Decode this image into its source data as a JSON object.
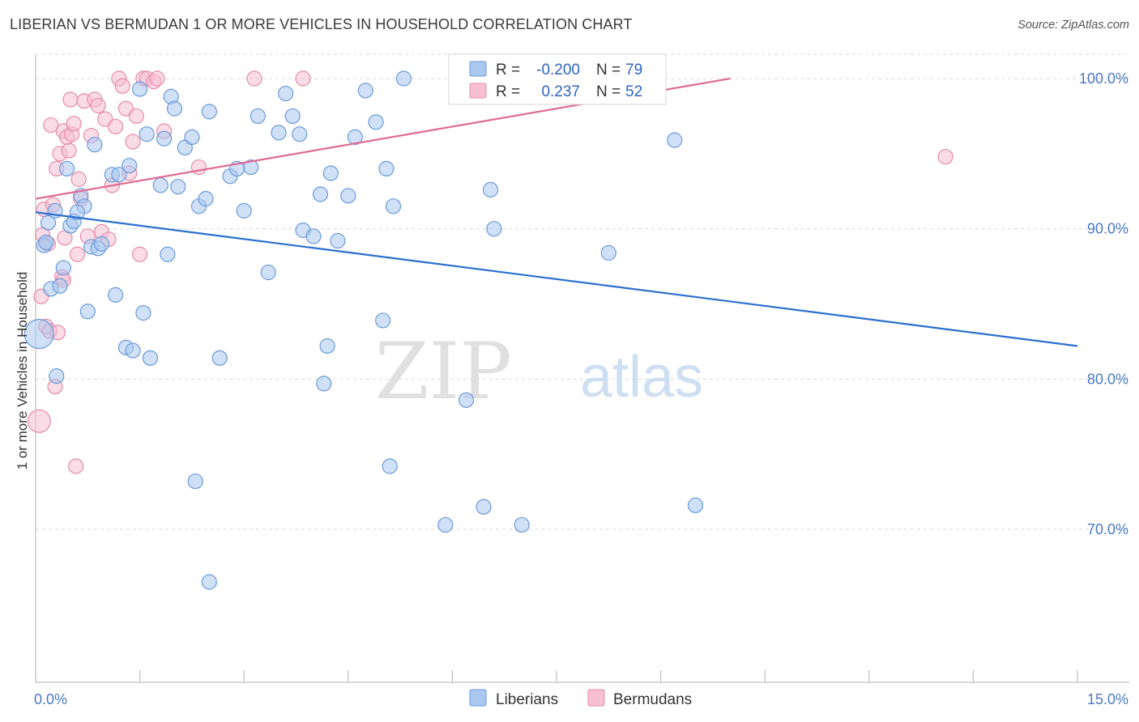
{
  "title": "LIBERIAN VS BERMUDAN 1 OR MORE VEHICLES IN HOUSEHOLD CORRELATION CHART",
  "source": "Source: ZipAtlas.com",
  "watermark": {
    "zip": "ZIP",
    "atlas": "atlas"
  },
  "colors": {
    "blue_fill": "#aac8f0",
    "blue_stroke": "#6a9ad8",
    "blue_line": "#2a6fd0",
    "pink_fill": "#f6c0d2",
    "pink_stroke": "#e68aab",
    "pink_line": "#e06a94",
    "grid": "#d8d8d8",
    "tick_label": "#4a78c4"
  },
  "legend": {
    "rows": [
      {
        "r_label": "R =",
        "r_value": "-0.200",
        "n_label": "N =",
        "n_value": "79"
      },
      {
        "r_label": "R =",
        "r_value": "0.237",
        "n_label": "N =",
        "n_value": "52"
      }
    ]
  },
  "chart_data": {
    "type": "scatter",
    "title": "LIBERIAN VS BERMUDAN 1 OR MORE VEHICLES IN HOUSEHOLD CORRELATION CHART",
    "xlabel": "",
    "ylabel": "1 or more Vehicles in Household",
    "xlim": [
      0,
      15
    ],
    "ylim": [
      60.5,
      101.5
    ],
    "x_tick_labels": [
      "0.0%",
      "15.0%"
    ],
    "y_ticks": [
      100,
      90,
      80,
      70
    ],
    "y_tick_labels": [
      "100.0%",
      "90.0%",
      "80.0%",
      "70.0%"
    ],
    "legend_position": "top-center",
    "series": [
      {
        "name": "Liberians",
        "r": -0.2,
        "n": 79,
        "trend": {
          "x0": 0,
          "y0": 91.1,
          "x1": 15,
          "y1": 82.2
        },
        "points": [
          [
            0.05,
            83.0
          ],
          [
            0.12,
            88.9
          ],
          [
            0.18,
            90.4
          ],
          [
            0.22,
            86.0
          ],
          [
            0.28,
            91.2
          ],
          [
            0.35,
            86.2
          ],
          [
            0.4,
            87.4
          ],
          [
            0.45,
            94.0
          ],
          [
            0.5,
            90.2
          ],
          [
            0.55,
            90.5
          ],
          [
            0.65,
            92.2
          ],
          [
            0.7,
            91.5
          ],
          [
            0.75,
            84.5
          ],
          [
            0.8,
            88.8
          ],
          [
            0.85,
            95.6
          ],
          [
            0.9,
            88.7
          ],
          [
            0.95,
            89.0
          ],
          [
            1.1,
            93.6
          ],
          [
            1.15,
            85.6
          ],
          [
            1.2,
            93.6
          ],
          [
            1.3,
            82.1
          ],
          [
            1.35,
            94.2
          ],
          [
            1.4,
            81.9
          ],
          [
            1.5,
            99.3
          ],
          [
            1.55,
            84.4
          ],
          [
            1.6,
            96.3
          ],
          [
            1.65,
            81.4
          ],
          [
            1.8,
            92.9
          ],
          [
            1.85,
            96.0
          ],
          [
            1.9,
            88.3
          ],
          [
            1.95,
            98.8
          ],
          [
            2.0,
            98.0
          ],
          [
            2.05,
            92.8
          ],
          [
            2.15,
            95.4
          ],
          [
            2.25,
            96.1
          ],
          [
            2.3,
            73.2
          ],
          [
            2.35,
            91.5
          ],
          [
            2.45,
            92.0
          ],
          [
            2.5,
            97.8
          ],
          [
            2.5,
            66.5
          ],
          [
            2.65,
            81.4
          ],
          [
            2.8,
            93.5
          ],
          [
            2.9,
            94.0
          ],
          [
            3.0,
            91.2
          ],
          [
            3.1,
            94.1
          ],
          [
            3.2,
            97.5
          ],
          [
            3.35,
            87.1
          ],
          [
            3.5,
            96.4
          ],
          [
            3.6,
            99.0
          ],
          [
            3.7,
            97.5
          ],
          [
            3.8,
            96.3
          ],
          [
            3.85,
            89.9
          ],
          [
            4.0,
            89.5
          ],
          [
            4.1,
            92.3
          ],
          [
            4.15,
            79.7
          ],
          [
            4.2,
            82.2
          ],
          [
            4.25,
            93.7
          ],
          [
            4.35,
            89.2
          ],
          [
            4.5,
            92.2
          ],
          [
            4.6,
            96.1
          ],
          [
            4.75,
            99.2
          ],
          [
            4.9,
            97.1
          ],
          [
            5.0,
            83.9
          ],
          [
            5.05,
            94.0
          ],
          [
            5.1,
            74.2
          ],
          [
            5.15,
            91.5
          ],
          [
            5.3,
            100.0
          ],
          [
            5.9,
            70.3
          ],
          [
            6.2,
            78.6
          ],
          [
            6.45,
            71.5
          ],
          [
            6.55,
            92.6
          ],
          [
            6.6,
            90.0
          ],
          [
            7.0,
            70.3
          ],
          [
            8.25,
            88.4
          ],
          [
            9.2,
            95.9
          ],
          [
            9.5,
            71.6
          ],
          [
            0.15,
            89.1
          ],
          [
            0.6,
            91.1
          ],
          [
            0.3,
            80.2
          ]
        ]
      },
      {
        "name": "Bermudans",
        "r": 0.237,
        "n": 52,
        "trend": {
          "x0": 0,
          "y0": 92.0,
          "x1": 10,
          "y1": 100.0
        },
        "points": [
          [
            0.05,
            77.2
          ],
          [
            0.08,
            85.5
          ],
          [
            0.1,
            89.6
          ],
          [
            0.12,
            91.3
          ],
          [
            0.15,
            83.5
          ],
          [
            0.18,
            89.0
          ],
          [
            0.2,
            83.2
          ],
          [
            0.22,
            96.9
          ],
          [
            0.25,
            91.6
          ],
          [
            0.28,
            79.5
          ],
          [
            0.3,
            94.0
          ],
          [
            0.32,
            83.1
          ],
          [
            0.35,
            95.0
          ],
          [
            0.38,
            86.8
          ],
          [
            0.4,
            96.5
          ],
          [
            0.42,
            89.4
          ],
          [
            0.45,
            96.1
          ],
          [
            0.48,
            95.2
          ],
          [
            0.5,
            98.6
          ],
          [
            0.52,
            96.3
          ],
          [
            0.55,
            97.0
          ],
          [
            0.58,
            74.2
          ],
          [
            0.6,
            88.3
          ],
          [
            0.62,
            93.3
          ],
          [
            0.65,
            92.0
          ],
          [
            0.7,
            98.5
          ],
          [
            0.75,
            89.5
          ],
          [
            0.8,
            96.2
          ],
          [
            0.85,
            98.6
          ],
          [
            0.9,
            98.2
          ],
          [
            0.95,
            89.8
          ],
          [
            1.0,
            97.3
          ],
          [
            1.05,
            89.3
          ],
          [
            1.1,
            92.9
          ],
          [
            1.15,
            96.8
          ],
          [
            1.2,
            100.0
          ],
          [
            1.25,
            99.5
          ],
          [
            1.3,
            98.0
          ],
          [
            1.35,
            93.7
          ],
          [
            1.4,
            95.8
          ],
          [
            1.45,
            97.5
          ],
          [
            1.5,
            88.3
          ],
          [
            1.55,
            100.0
          ],
          [
            1.6,
            100.0
          ],
          [
            1.7,
            99.8
          ],
          [
            1.75,
            100.0
          ],
          [
            1.85,
            96.5
          ],
          [
            2.35,
            94.1
          ],
          [
            3.15,
            100.0
          ],
          [
            3.85,
            100.0
          ],
          [
            13.1,
            94.8
          ],
          [
            0.4,
            86.6
          ]
        ]
      }
    ]
  }
}
